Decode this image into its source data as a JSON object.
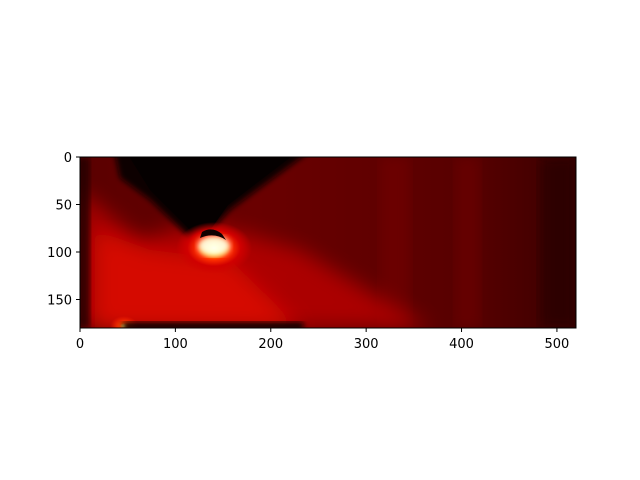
{
  "chart_data": {
    "type": "heatmap",
    "title": "",
    "xlabel": "",
    "ylabel": "",
    "colormap": "hot",
    "colors": {
      "low": "#0a0000",
      "mid": "#ff2a00",
      "high": "#ffffcc",
      "background": "#ffffff"
    },
    "xlim": [
      0,
      520
    ],
    "ylim": [
      180,
      0
    ],
    "x_ticks": [
      {
        "value": 0,
        "label": "0"
      },
      {
        "value": 100,
        "label": "100"
      },
      {
        "value": 200,
        "label": "200"
      },
      {
        "value": 300,
        "label": "300"
      },
      {
        "value": 400,
        "label": "400"
      },
      {
        "value": 500,
        "label": "500"
      }
    ],
    "y_ticks": [
      {
        "value": 0,
        "label": "0"
      },
      {
        "value": 50,
        "label": "50"
      },
      {
        "value": 100,
        "label": "100"
      },
      {
        "value": 150,
        "label": "150"
      }
    ],
    "features": {
      "dark_wedge": {
        "top_left_x": 40,
        "top_right_x": 240,
        "apex": [
          140,
          90
        ]
      },
      "hot_spot": {
        "center": [
          145,
          100
        ]
      },
      "bottom_glow": {
        "center": [
          45,
          178
        ]
      },
      "dark_bottom_strip": {
        "x_range": [
          40,
          235
        ],
        "y": 178
      }
    },
    "grid": false,
    "legend": "none"
  }
}
